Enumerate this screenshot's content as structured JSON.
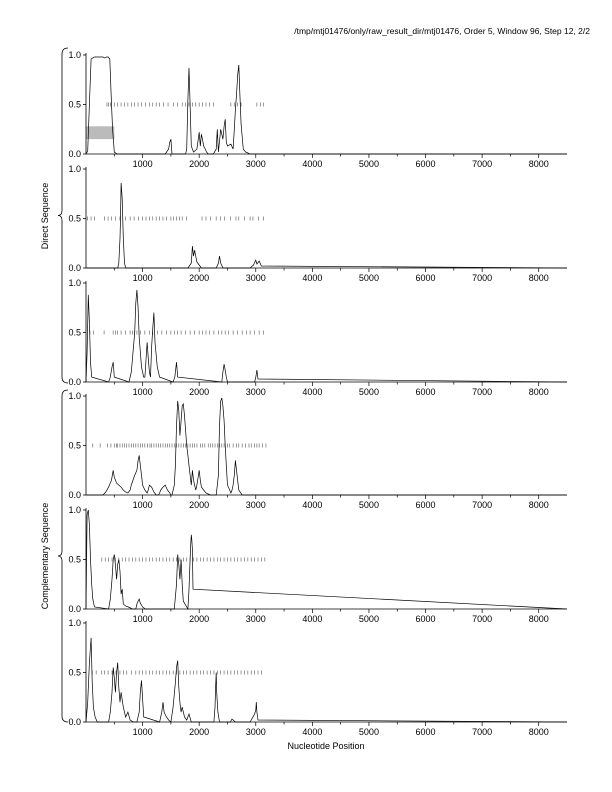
{
  "header": {
    "title": "/tmp/mtj01476/only/raw_result_dir/mtj01476, Order 5, Window 96, Step 12, 2/2"
  },
  "groups": [
    {
      "label": "Direct Sequence",
      "panels": [
        0,
        1,
        2
      ]
    },
    {
      "label": "Complementary Sequence",
      "panels": [
        3,
        4,
        5
      ]
    }
  ],
  "chart_data": {
    "type": "line",
    "xlabel": "Nucleotide Position",
    "xlim": [
      0,
      8500
    ],
    "ylim": [
      0,
      1.0
    ],
    "x_ticks": [
      1000,
      2000,
      3000,
      4000,
      5000,
      6000,
      7000,
      8000
    ],
    "x_tick_labels": [
      "1000",
      "2000",
      "3000",
      "4000",
      "5000",
      "6000",
      "7000",
      "8000"
    ],
    "y_ticks": [
      0,
      0.5,
      1.0
    ],
    "y_tick_labels": [
      "0.0",
      "0.5",
      "1.0"
    ],
    "series_color": "#000000",
    "marker_color": "#555555",
    "highlight_color": "#bbbbbb",
    "panels": [
      {
        "highlight": {
          "x": [
            0,
            500
          ],
          "y": [
            0.15,
            0.28
          ]
        },
        "markers_y": 0.5,
        "markers_x": [
          370,
          400,
          430,
          500,
          560,
          620,
          680,
          740,
          800,
          860,
          920,
          980,
          1050,
          1120,
          1180,
          1240,
          1300,
          1370,
          1450,
          1550,
          1620,
          1700,
          1760,
          1820,
          1880,
          1940,
          2000,
          2060,
          2120,
          2180,
          2250,
          2560,
          2620,
          2680,
          2740,
          3020,
          3080,
          3140
        ],
        "x": [
          0,
          30,
          60,
          90,
          150,
          200,
          300,
          330,
          360,
          390,
          420,
          450,
          470,
          500,
          550,
          700,
          900,
          1400,
          1460,
          1480,
          1500,
          1520,
          1600,
          1700,
          1760,
          1780,
          1800,
          1820,
          1840,
          1860,
          1900,
          1960,
          2000,
          2020,
          2040,
          2060,
          2080,
          2100,
          2130,
          2160,
          2200,
          2250,
          2300,
          2320,
          2340,
          2380,
          2420,
          2440,
          2460,
          2480,
          2500,
          2560,
          2600,
          2620,
          2640,
          2660,
          2680,
          2700,
          2720,
          2740,
          2780,
          2820,
          2900,
          8500
        ],
        "y": [
          0,
          0.03,
          0.5,
          0.96,
          0.98,
          0.98,
          0.98,
          0.97,
          0.98,
          0.98,
          0.96,
          0.5,
          0.25,
          0.02,
          0,
          0,
          0,
          0,
          0.05,
          0.12,
          0.15,
          0,
          0,
          0,
          0,
          0.05,
          0.55,
          0.87,
          0.5,
          0.08,
          0.02,
          0.05,
          0.22,
          0.08,
          0.2,
          0.14,
          0.08,
          0.06,
          0.02,
          0,
          0,
          0,
          0.05,
          0.25,
          0.02,
          0.25,
          0.15,
          0.28,
          0.35,
          0.12,
          0.08,
          0.1,
          0.05,
          0.25,
          0.45,
          0.6,
          0.8,
          0.9,
          0.6,
          0.3,
          0.05,
          0.02,
          0,
          0
        ]
      },
      {
        "markers_y": 0.5,
        "markers_x": [
          30,
          90,
          150,
          330,
          390,
          450,
          520,
          600,
          700,
          780,
          850,
          930,
          1000,
          1060,
          1120,
          1180,
          1240,
          1300,
          1360,
          1420,
          1500,
          1550,
          1600,
          1650,
          1700,
          1780,
          2050,
          2120,
          2200,
          2300,
          2380,
          2450,
          2550,
          2650,
          2700,
          2800,
          2900,
          2950,
          3050,
          3140
        ],
        "x": [
          0,
          560,
          580,
          600,
          610,
          620,
          640,
          660,
          680,
          700,
          1800,
          1860,
          1880,
          1900,
          1920,
          1960,
          2000,
          2040,
          2300,
          2340,
          2360,
          2380,
          2420,
          2900,
          2960,
          3000,
          3020,
          3060,
          3100,
          8500
        ],
        "y": [
          0,
          0,
          0.05,
          0.3,
          0.5,
          0.86,
          0.7,
          0.3,
          0.05,
          0,
          0,
          0.05,
          0.22,
          0.12,
          0.18,
          0.06,
          0.03,
          0,
          0,
          0.05,
          0.12,
          0.05,
          0,
          0,
          0.03,
          0.08,
          0.04,
          0.07,
          0.02,
          0
        ]
      },
      {
        "markers_y": 0.5,
        "markers_x": [
          70,
          130,
          320,
          480,
          520,
          560,
          620,
          700,
          780,
          820,
          860,
          900,
          960,
          1040,
          1120,
          1180,
          1260,
          1340,
          1420,
          1500,
          1560,
          1620,
          1680,
          1760,
          1840,
          1920,
          2000,
          2060,
          2120,
          2180,
          2260,
          2340,
          2400,
          2460,
          2520,
          2600,
          2680,
          2760,
          2840,
          2900,
          2980,
          3060,
          3140
        ],
        "x": [
          0,
          20,
          40,
          60,
          80,
          100,
          400,
          430,
          460,
          480,
          500,
          760,
          800,
          830,
          860,
          880,
          900,
          920,
          940,
          980,
          1020,
          1040,
          1080,
          1100,
          1120,
          1140,
          1160,
          1180,
          1200,
          1220,
          1260,
          1300,
          1540,
          1570,
          1600,
          1620,
          2400,
          2420,
          2440,
          2460,
          2480,
          2500,
          2980,
          3000,
          3020,
          3040,
          8500
        ],
        "y": [
          0,
          0.3,
          0.88,
          0.6,
          0.2,
          0.05,
          0,
          0.05,
          0.15,
          0.2,
          0.05,
          0,
          0.1,
          0.3,
          0.5,
          0.8,
          0.93,
          0.75,
          0.45,
          0.15,
          0.05,
          0.05,
          0.4,
          0.25,
          0.1,
          0.05,
          0.35,
          0.55,
          0.7,
          0.4,
          0.15,
          0.05,
          0,
          0.05,
          0.2,
          0.05,
          0,
          0.1,
          0.18,
          0.12,
          0.05,
          0,
          0,
          0.05,
          0.12,
          0.03,
          0
        ]
      },
      {
        "markers_y": 0.5,
        "markers_x": [
          120,
          250,
          380,
          440,
          500,
          540,
          560,
          600,
          640,
          680,
          720,
          760,
          800,
          840,
          880,
          920,
          960,
          1000,
          1040,
          1090,
          1130,
          1160,
          1200,
          1240,
          1280,
          1320,
          1360,
          1400,
          1440,
          1480,
          1520,
          1560,
          1600,
          1640,
          1680,
          1720,
          1760,
          1800,
          1840,
          1880,
          1920,
          1960,
          2020,
          2060,
          2100,
          2160,
          2200,
          2240,
          2280,
          2320,
          2360,
          2400,
          2440,
          2500,
          2540,
          2600,
          2660,
          2700,
          2760,
          2820,
          2880,
          2920,
          2980,
          3020,
          3060,
          3120,
          3180
        ],
        "x": [
          0,
          300,
          350,
          400,
          450,
          480,
          500,
          540,
          580,
          620,
          660,
          700,
          740,
          780,
          800,
          830,
          860,
          900,
          920,
          940,
          960,
          980,
          1000,
          1040,
          1080,
          1100,
          1120,
          1160,
          1200,
          1240,
          1280,
          1300,
          1320,
          1360,
          1400,
          1440,
          1480,
          1500,
          1520,
          1560,
          1580,
          1600,
          1620,
          1640,
          1660,
          1680,
          1700,
          1720,
          1740,
          1760,
          1780,
          1800,
          1820,
          1840,
          1860,
          1880,
          1900,
          1920,
          1940,
          1960,
          2000,
          2020,
          2040,
          2080,
          2120,
          2200,
          2300,
          2340,
          2360,
          2380,
          2400,
          2420,
          2440,
          2460,
          2480,
          2500,
          2540,
          2560,
          2580,
          2600,
          2620,
          2640,
          2660,
          2700,
          2760,
          8500
        ],
        "y": [
          0,
          0,
          0.03,
          0.08,
          0.15,
          0.25,
          0.18,
          0.12,
          0.1,
          0.08,
          0.05,
          0.03,
          0.02,
          0.05,
          0.1,
          0.15,
          0.2,
          0.25,
          0.35,
          0.4,
          0.3,
          0.2,
          0.1,
          0.05,
          0.02,
          0.05,
          0.1,
          0.08,
          0.03,
          0,
          0,
          0.02,
          0.05,
          0.08,
          0.1,
          0.05,
          0.02,
          0,
          0,
          0.1,
          0.3,
          0.7,
          0.95,
          0.85,
          0.6,
          0.75,
          0.9,
          0.92,
          0.8,
          0.65,
          0.5,
          0.4,
          0.3,
          0.2,
          0.1,
          0.25,
          0.15,
          0.1,
          0.05,
          0.1,
          0.25,
          0.15,
          0.08,
          0.05,
          0.02,
          0,
          0,
          0.2,
          0.7,
          0.95,
          0.98,
          0.9,
          0.75,
          0.5,
          0.3,
          0.1,
          0.05,
          0.02,
          0.05,
          0.1,
          0.2,
          0.35,
          0.25,
          0.05,
          0,
          0
        ]
      },
      {
        "markers_y": 0.5,
        "markers_x": [
          280,
          340,
          400,
          460,
          520,
          580,
          640,
          700,
          760,
          820,
          880,
          940,
          1000,
          1060,
          1120,
          1180,
          1240,
          1300,
          1360,
          1420,
          1480,
          1540,
          1600,
          1660,
          1720,
          1780,
          1840,
          1900,
          1960,
          2020,
          2080,
          2140,
          2200,
          2260,
          2320,
          2380,
          2440,
          2500,
          2560,
          2620,
          2680,
          2740,
          2800,
          2860,
          2920,
          2980,
          3040,
          3100,
          3160
        ],
        "x": [
          0,
          20,
          40,
          60,
          80,
          100,
          120,
          150,
          400,
          430,
          460,
          480,
          500,
          520,
          540,
          560,
          580,
          600,
          620,
          640,
          660,
          700,
          750,
          820,
          880,
          900,
          920,
          940,
          960,
          1000,
          1050,
          1560,
          1600,
          1620,
          1640,
          1660,
          1680,
          1700,
          1720,
          1800,
          1820,
          1840,
          1850,
          1860,
          1870,
          1880,
          1890,
          8500
        ],
        "y": [
          0,
          0.95,
          1.0,
          0.85,
          0.5,
          0.25,
          0.1,
          0.02,
          0,
          0.1,
          0.3,
          0.5,
          0.55,
          0.45,
          0.3,
          0.45,
          0.5,
          0.38,
          0.15,
          0.2,
          0.05,
          0.03,
          0.02,
          0,
          0,
          0.05,
          0.08,
          0.1,
          0.06,
          0.02,
          0,
          0,
          0.25,
          0.55,
          0.45,
          0.3,
          0.5,
          0.25,
          0.08,
          0,
          0.2,
          0.5,
          0.65,
          0.75,
          0.7,
          0.6,
          0.2,
          0
        ]
      },
      {
        "markers_y": 0.5,
        "markers_x": [
          110,
          180,
          270,
          330,
          390,
          460,
          530,
          600,
          660,
          720,
          800,
          880,
          940,
          1000,
          1060,
          1120,
          1180,
          1240,
          1300,
          1360,
          1420,
          1480,
          1540,
          1600,
          1660,
          1720,
          1780,
          1840,
          1900,
          1960,
          2020,
          2080,
          2140,
          2200,
          2260,
          2320,
          2380,
          2440,
          2500,
          2560,
          2620,
          2680,
          2740,
          2800,
          2860,
          2920,
          2980,
          3040,
          3100
        ],
        "x": [
          0,
          30,
          60,
          90,
          110,
          130,
          160,
          200,
          400,
          430,
          460,
          480,
          500,
          520,
          540,
          560,
          580,
          600,
          620,
          660,
          700,
          740,
          780,
          840,
          900,
          940,
          960,
          980,
          1020,
          1300,
          1340,
          1360,
          1380,
          1420,
          1460,
          1500,
          1540,
          1580,
          1600,
          1620,
          1640,
          1660,
          1680,
          1700,
          1740,
          1780,
          1820,
          1860,
          2260,
          2280,
          2290,
          2300,
          2310,
          2330,
          2360,
          2550,
          2580,
          2600,
          2640,
          2900,
          2980,
          3000,
          3010,
          3020,
          3040,
          8500
        ],
        "y": [
          0,
          0.2,
          0.6,
          0.85,
          0.4,
          0.15,
          0.05,
          0,
          0,
          0.1,
          0.3,
          0.55,
          0.45,
          0.3,
          0.5,
          0.6,
          0.35,
          0.2,
          0.3,
          0.15,
          0.05,
          0.1,
          0.02,
          0,
          0,
          0.1,
          0.3,
          0.42,
          0.05,
          0,
          0.1,
          0.2,
          0.1,
          0.05,
          0.02,
          0,
          0.15,
          0.4,
          0.55,
          0.62,
          0.35,
          0.2,
          0.1,
          0.15,
          0.05,
          0.02,
          0.08,
          0,
          0,
          0.15,
          0.35,
          0.5,
          0.3,
          0.1,
          0,
          0,
          0.03,
          0.02,
          0,
          0,
          0.08,
          0.12,
          0.2,
          0.1,
          0.02,
          0
        ]
      }
    ]
  }
}
